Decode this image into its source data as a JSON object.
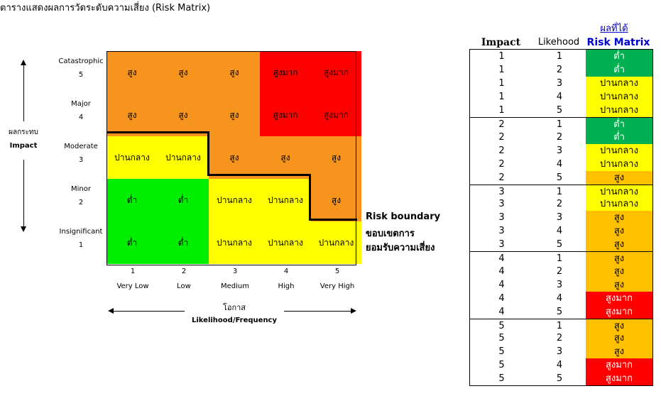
{
  "title": "ตารางแสดงผลการวัดระดับความเสี่ยง (Risk Matrix)",
  "colors": {
    "green": "#00ee00",
    "yellow": "#ffff00",
    "orange": "#f7941d",
    "red": "#ff0000",
    "tbl_green": "#00b050",
    "tbl_yellow": "#ffff00",
    "tbl_orange": "#ffc000",
    "tbl_red": "#ff0000",
    "header_blue": "#0000cc"
  },
  "impact_axis": {
    "label_th": "ผลกระทบ",
    "label_en": "Impact"
  },
  "likelihood_axis": {
    "label_th": "โอกาส",
    "label_en": "Likelihood/Frequency"
  },
  "boundary_label": {
    "line1": "Risk boundary",
    "line2": "ขอบเขตการ",
    "line3": "ยอมรับความเสี่ยง"
  },
  "chart_data": {
    "type": "heatmap",
    "title": "ตารางแสดงผลการวัดระดับความเสี่ยง (Risk Matrix)",
    "rows": [
      {
        "name": "Catastrophic",
        "value": "5"
      },
      {
        "name": "Major",
        "value": "4"
      },
      {
        "name": "Moderate",
        "value": "3"
      },
      {
        "name": "Minor",
        "value": "2"
      },
      {
        "name": "Insignificant",
        "value": "1"
      }
    ],
    "columns": [
      {
        "value": "1",
        "name": "Very Low"
      },
      {
        "value": "2",
        "name": "Low"
      },
      {
        "value": "3",
        "name": "Medium"
      },
      {
        "value": "4",
        "name": "High"
      },
      {
        "value": "5",
        "name": "Very High"
      }
    ],
    "cells": [
      [
        "สูง",
        "สูง",
        "สูง",
        "สูงมาก",
        "สูงมาก"
      ],
      [
        "สูง",
        "สูง",
        "สูง",
        "สูงมาก",
        "สูงมาก"
      ],
      [
        "ปานกลาง",
        "ปานกลาง",
        "สูง",
        "สูง",
        "สูง"
      ],
      [
        "ต่ำ",
        "ต่ำ",
        "ปานกลาง",
        "ปานกลาง",
        "สูง"
      ],
      [
        "ต่ำ",
        "ต่ำ",
        "ปานกลาง",
        "ปานกลาง",
        "ปานกลาง"
      ]
    ],
    "cell_levels": [
      [
        "orange",
        "orange",
        "orange",
        "red",
        "red"
      ],
      [
        "orange",
        "orange",
        "orange",
        "red",
        "red"
      ],
      [
        "yellow",
        "yellow",
        "orange",
        "orange",
        "orange"
      ],
      [
        "green",
        "green",
        "yellow",
        "yellow",
        "orange"
      ],
      [
        "green",
        "green",
        "yellow",
        "yellow",
        "yellow"
      ]
    ]
  },
  "result_table": {
    "link": "ผลที่ได้",
    "headers": [
      "Impact",
      "Likehood",
      "Risk Matrix"
    ],
    "rows": [
      [
        "1",
        "1",
        "ต่ำ",
        "green"
      ],
      [
        "1",
        "2",
        "ต่ำ",
        "green"
      ],
      [
        "1",
        "3",
        "ปานกลาง",
        "yellow"
      ],
      [
        "1",
        "4",
        "ปานกลาง",
        "yellow"
      ],
      [
        "1",
        "5",
        "ปานกลาง",
        "yellow"
      ],
      [
        "2",
        "1",
        "ต่ำ",
        "green"
      ],
      [
        "2",
        "2",
        "ต่ำ",
        "green"
      ],
      [
        "2",
        "3",
        "ปานกลาง",
        "yellow"
      ],
      [
        "2",
        "4",
        "ปานกลาง",
        "yellow"
      ],
      [
        "2",
        "5",
        "สูง",
        "orange"
      ],
      [
        "3",
        "1",
        "ปานกลาง",
        "yellow"
      ],
      [
        "3",
        "2",
        "ปานกลาง",
        "yellow"
      ],
      [
        "3",
        "3",
        "สูง",
        "orange"
      ],
      [
        "3",
        "4",
        "สูง",
        "orange"
      ],
      [
        "3",
        "5",
        "สูง",
        "orange"
      ],
      [
        "4",
        "1",
        "สูง",
        "orange"
      ],
      [
        "4",
        "2",
        "สูง",
        "orange"
      ],
      [
        "4",
        "3",
        "สูง",
        "orange"
      ],
      [
        "4",
        "4",
        "สูงมาก",
        "red"
      ],
      [
        "4",
        "5",
        "สูงมาก",
        "red"
      ],
      [
        "5",
        "1",
        "สูง",
        "orange"
      ],
      [
        "5",
        "2",
        "สูง",
        "orange"
      ],
      [
        "5",
        "3",
        "สูง",
        "orange"
      ],
      [
        "5",
        "4",
        "สูงมาก",
        "red"
      ],
      [
        "5",
        "5",
        "สูงมาก",
        "red"
      ]
    ]
  }
}
